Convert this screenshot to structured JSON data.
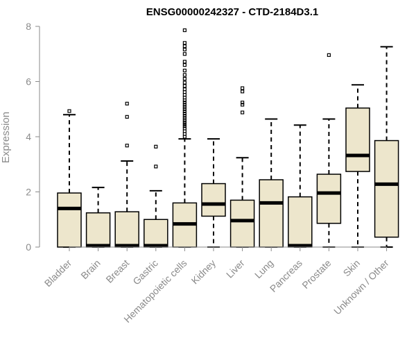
{
  "chart_data": {
    "type": "boxplot",
    "title": "ENSG00000242327 - CTD-2184D3.1",
    "xlabel": "",
    "ylabel": "Expression",
    "ylim": [
      0,
      8
    ],
    "yticks": [
      0,
      2,
      4,
      6,
      8
    ],
    "grid": false,
    "legend": "none",
    "colors": {
      "box_fill": "#ede6cc",
      "stroke": "#000000",
      "axis": "#8a8a8a",
      "title": "#000000"
    },
    "categories": [
      "Bladder",
      "Brain",
      "Breast",
      "Gastric",
      "Hematopoietic cells",
      "Kidney",
      "Liver",
      "Lung",
      "Pancreas",
      "Prostate",
      "Skin",
      "Unknown / Other"
    ],
    "boxes": [
      {
        "name": "Bladder",
        "min": 0,
        "q1": 0,
        "median": 1.4,
        "q3": 1.96,
        "max": 4.8,
        "outliers": [
          4.93
        ]
      },
      {
        "name": "Brain",
        "min": 0,
        "q1": 0,
        "median": 0.02,
        "q3": 1.24,
        "max": 2.16,
        "outliers": []
      },
      {
        "name": "Breast",
        "min": 0,
        "q1": 0,
        "median": 0.02,
        "q3": 1.28,
        "max": 3.12,
        "outliers": [
          3.68,
          4.72,
          5.2
        ]
      },
      {
        "name": "Gastric",
        "min": 0,
        "q1": 0,
        "median": 0.02,
        "q3": 1.0,
        "max": 2.04,
        "outliers": [
          2.92,
          3.64
        ]
      },
      {
        "name": "Hematopoietic cells",
        "min": 0,
        "q1": 0,
        "median": 0.84,
        "q3": 1.6,
        "max": 3.92,
        "outliers": [
          4.0,
          4.1,
          4.2,
          4.3,
          4.38,
          4.45,
          4.52,
          4.6,
          4.68,
          4.76,
          4.84,
          4.92,
          5.0,
          5.08,
          5.16,
          5.24,
          5.32,
          5.42,
          5.52,
          5.62,
          5.72,
          5.84,
          5.96,
          6.1,
          6.24,
          6.4,
          6.6,
          6.72,
          7.0,
          7.16,
          7.28,
          7.4,
          7.86
        ]
      },
      {
        "name": "Kidney",
        "min": 0,
        "q1": 1.12,
        "median": 1.56,
        "q3": 2.3,
        "max": 3.92,
        "outliers": []
      },
      {
        "name": "Liver",
        "min": 0,
        "q1": 0,
        "median": 0.96,
        "q3": 1.7,
        "max": 3.24,
        "outliers": [
          4.88,
          5.16,
          5.24,
          5.64,
          5.76
        ]
      },
      {
        "name": "Lung",
        "min": 0,
        "q1": 0,
        "median": 1.6,
        "q3": 2.44,
        "max": 4.64,
        "outliers": []
      },
      {
        "name": "Pancreas",
        "min": 0,
        "q1": 0,
        "median": 0.02,
        "q3": 1.82,
        "max": 4.42,
        "outliers": []
      },
      {
        "name": "Prostate",
        "min": 0,
        "q1": 0.86,
        "median": 1.96,
        "q3": 2.64,
        "max": 4.64,
        "outliers": [
          6.96
        ]
      },
      {
        "name": "Skin",
        "min": 0,
        "q1": 2.74,
        "median": 3.32,
        "q3": 5.04,
        "max": 5.88,
        "outliers": []
      },
      {
        "name": "Unknown / Other",
        "min": 0,
        "q1": 0.36,
        "median": 2.28,
        "q3": 3.86,
        "max": 7.26,
        "outliers": []
      }
    ]
  }
}
